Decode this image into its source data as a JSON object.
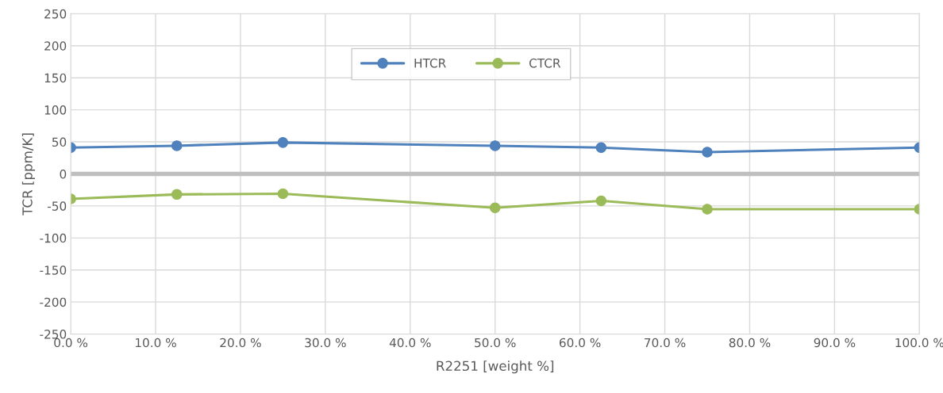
{
  "chart_data": {
    "type": "line",
    "xlabel": "R2251 [weight %]",
    "ylabel": "TCR [ppm/K]",
    "x": [
      0,
      12.5,
      25,
      50,
      62.5,
      75,
      100
    ],
    "series": [
      {
        "name": "HTCR",
        "color": "#4f81bd",
        "values": [
          41,
          44,
          49,
          44,
          41,
          34,
          41
        ]
      },
      {
        "name": "CTCR",
        "color": "#9bbb59",
        "values": [
          -39,
          -32,
          -31,
          -53,
          -42,
          -55,
          -55
        ]
      }
    ],
    "xlim": [
      0,
      100
    ],
    "xticks": [
      {
        "value": 0,
        "label": "0.0 %"
      },
      {
        "value": 10,
        "label": "10.0 %"
      },
      {
        "value": 20,
        "label": "20.0 %"
      },
      {
        "value": 30,
        "label": "30.0 %"
      },
      {
        "value": 40,
        "label": "40.0 %"
      },
      {
        "value": 50,
        "label": "50.0 %"
      },
      {
        "value": 60,
        "label": "60.0 %"
      },
      {
        "value": 70,
        "label": "70.0 %"
      },
      {
        "value": 80,
        "label": "80.0 %"
      },
      {
        "value": 90,
        "label": "90.0 %"
      },
      {
        "value": 100,
        "label": "100.0 %"
      }
    ],
    "ylim": [
      -250,
      250
    ],
    "yticks": [
      -250,
      -200,
      -150,
      -100,
      -50,
      0,
      50,
      100,
      150,
      200,
      250
    ],
    "ref_lines": [
      {
        "axis": "y",
        "value": 0,
        "color": "#bfbfbf"
      }
    ],
    "grid": true,
    "legend": "top",
    "marker": "circle",
    "line_style": "solid"
  }
}
